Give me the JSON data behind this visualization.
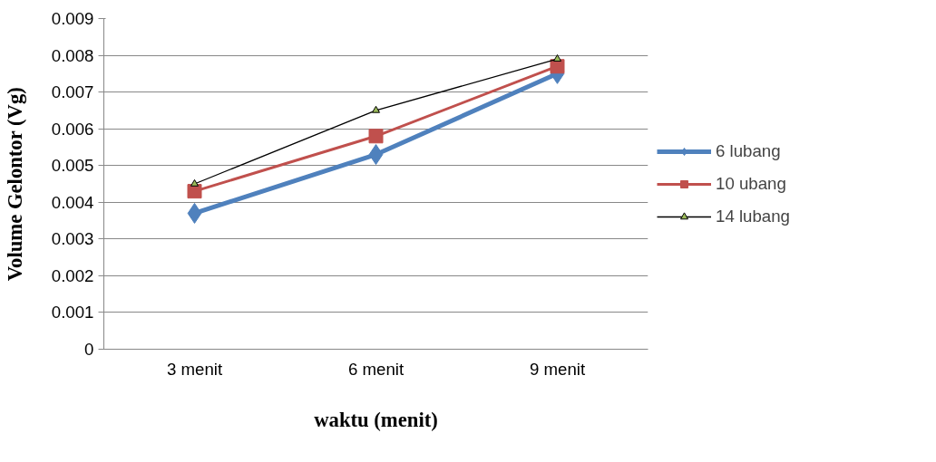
{
  "chart_data": {
    "type": "line",
    "xlabel": "waktu (menit)",
    "ylabel": "Volume Gelontor (Vg)",
    "categories": [
      "3 menit",
      "6 menit",
      "9 menit"
    ],
    "series": [
      {
        "name": "6 lubang",
        "color": "#4f81bd",
        "marker": "diamond",
        "values": [
          0.0037,
          0.0053,
          0.0075
        ]
      },
      {
        "name": "10 ubang",
        "color": "#c0504d",
        "marker": "square",
        "values": [
          0.0043,
          0.0058,
          0.0077
        ]
      },
      {
        "name": "14 lubang",
        "color": "#000000",
        "marker": "triangle",
        "values": [
          0.0045,
          0.0065,
          0.0079
        ]
      }
    ],
    "ylim": [
      0,
      0.009
    ],
    "yticks": [
      0,
      0.001,
      0.002,
      0.003,
      0.004,
      0.005,
      0.006,
      0.007,
      0.008,
      0.009
    ],
    "grid": "y",
    "legend": "right",
    "line_style": "solid"
  }
}
